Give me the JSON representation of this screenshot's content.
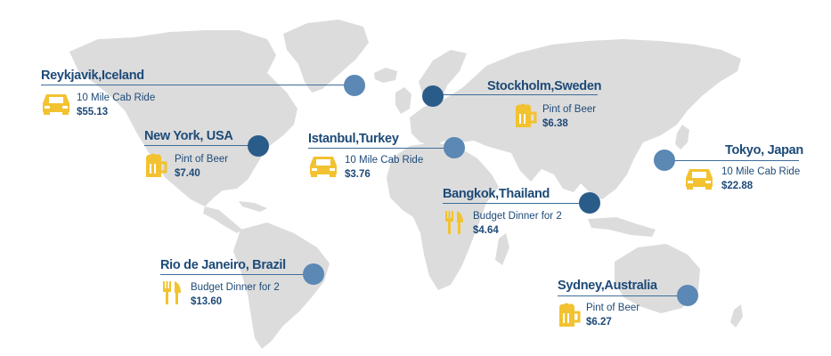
{
  "colors": {
    "land": "#dcdcdc",
    "line": "#3d6d99",
    "dot_light": "#5b88b5",
    "dot_dark": "#2a5c8a",
    "text": "#1d4a78",
    "icon": "#f2c230"
  },
  "locations": [
    {
      "city": "Reykjavik,Iceland",
      "item": "10 Mile Cab Ride",
      "price": "$55.13",
      "icon": "car-icon"
    },
    {
      "city": "Stockholm,Sweden",
      "item": "Pint of Beer",
      "price": "$6.38",
      "icon": "beer-icon"
    },
    {
      "city": "New York, USA",
      "item": "Pint of Beer",
      "price": "$7.40",
      "icon": "beer-icon"
    },
    {
      "city": "Istanbul,Turkey",
      "item": "10 Mile Cab Ride",
      "price": "$3.76",
      "icon": "car-icon"
    },
    {
      "city": "Tokyo, Japan",
      "item": "10 Mile Cab Ride",
      "price": "$22.88",
      "icon": "car-icon"
    },
    {
      "city": "Bangkok,Thailand",
      "item": "Budget Dinner for 2",
      "price": "$4.64",
      "icon": "fork-knife-icon"
    },
    {
      "city": "Rio de Janeiro, Brazil",
      "item": "Budget Dinner for 2",
      "price": "$13.60",
      "icon": "fork-knife-icon"
    },
    {
      "city": "Sydney,Australia",
      "item": "Pint of Beer",
      "price": "$6.27",
      "icon": "beer-icon"
    }
  ]
}
